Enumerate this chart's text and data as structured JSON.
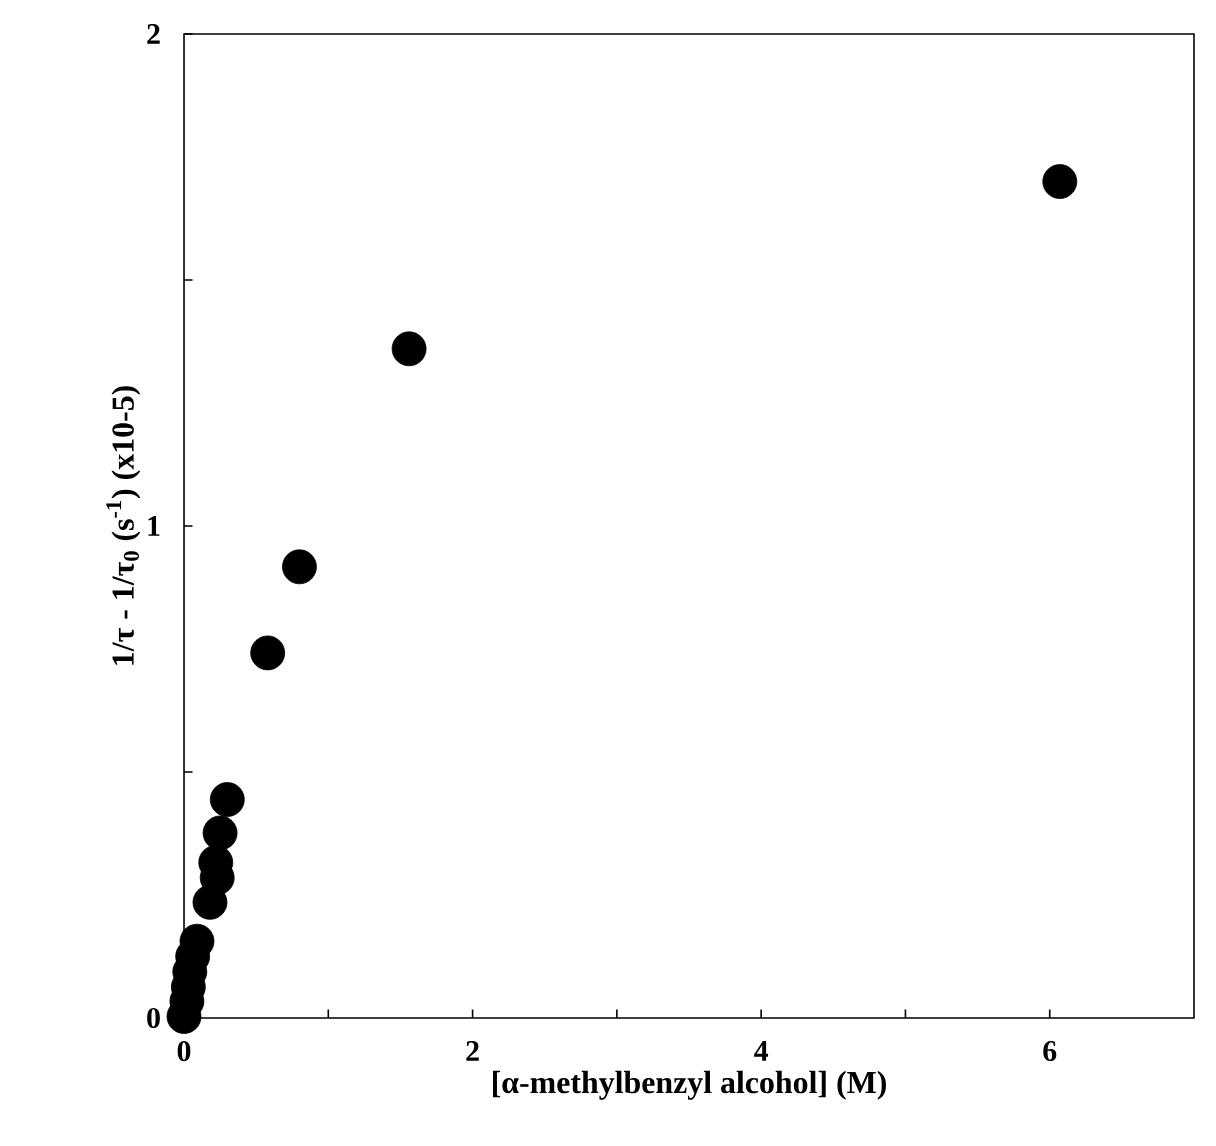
{
  "chart_data": {
    "type": "scatter",
    "xlabel": "[α-methylbenzyl alcohol] (M)",
    "ylabel": "1/τ - 1/τ$_{0}$   (s$^{-1}$)   (x10-5)",
    "x": [
      0,
      0.02,
      0.03,
      0.04,
      0.06,
      0.09,
      0.18,
      0.23,
      0.22,
      0.25,
      0.3,
      0.58,
      0.8,
      1.56,
      6.07
    ],
    "values": [
      0.003,
      0.034,
      0.063,
      0.094,
      0.125,
      0.156,
      0.235,
      0.285,
      0.316,
      0.376,
      0.444,
      0.742,
      0.917,
      1.36,
      1.7
    ],
    "color": "#000000",
    "marker": "circle",
    "xlim": [
      0,
      7
    ],
    "xticks": [
      0,
      {
        "value": 1,
        "label": null
      },
      2,
      {
        "value": 3,
        "label": null
      },
      4,
      {
        "value": 5,
        "label": null
      },
      6
    ],
    "ylim": [
      0,
      2
    ],
    "yticks": [
      0,
      {
        "value": 0.5,
        "label": null
      },
      1,
      {
        "value": 1.5,
        "label": null
      },
      2
    ]
  }
}
